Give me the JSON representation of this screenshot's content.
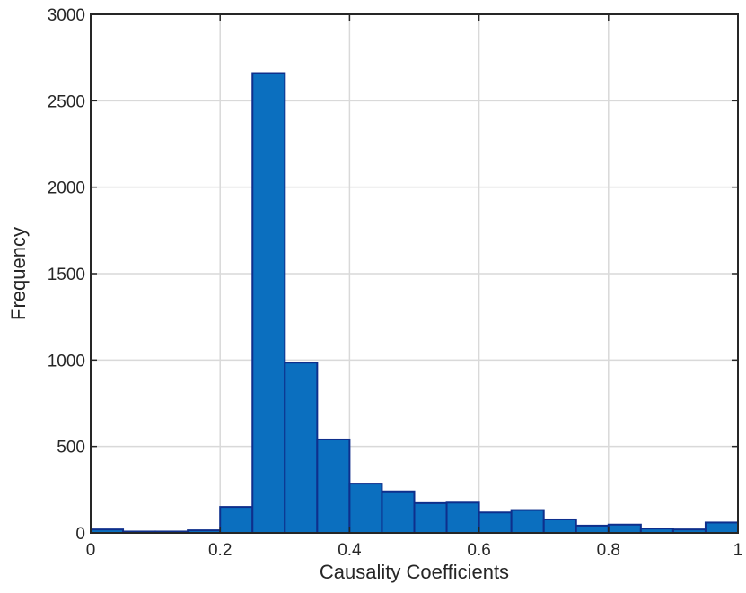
{
  "chart_data": {
    "type": "bar",
    "subtype": "histogram",
    "title": "",
    "xlabel": "Causality Coefficients",
    "ylabel": "Frequency",
    "xlim": [
      0,
      1
    ],
    "ylim": [
      0,
      3000
    ],
    "xticks": [
      "0",
      "0.2",
      "0.4",
      "0.6",
      "0.8",
      "1"
    ],
    "yticks": [
      "0",
      "500",
      "1000",
      "1500",
      "2000",
      "2500",
      "3000"
    ],
    "grid": true,
    "bin_edges": [
      0,
      0.05,
      0.1,
      0.15,
      0.2,
      0.25,
      0.3,
      0.35,
      0.4,
      0.45,
      0.5,
      0.55,
      0.6,
      0.65,
      0.7,
      0.75,
      0.8,
      0.85,
      0.9,
      0.95,
      1.0
    ],
    "values": [
      20,
      8,
      8,
      15,
      150,
      2660,
      985,
      540,
      285,
      240,
      172,
      175,
      118,
      132,
      78,
      42,
      48,
      25,
      20,
      60
    ],
    "bar_color": "#0b6fbf",
    "edge_color": "#0e2f8c"
  }
}
